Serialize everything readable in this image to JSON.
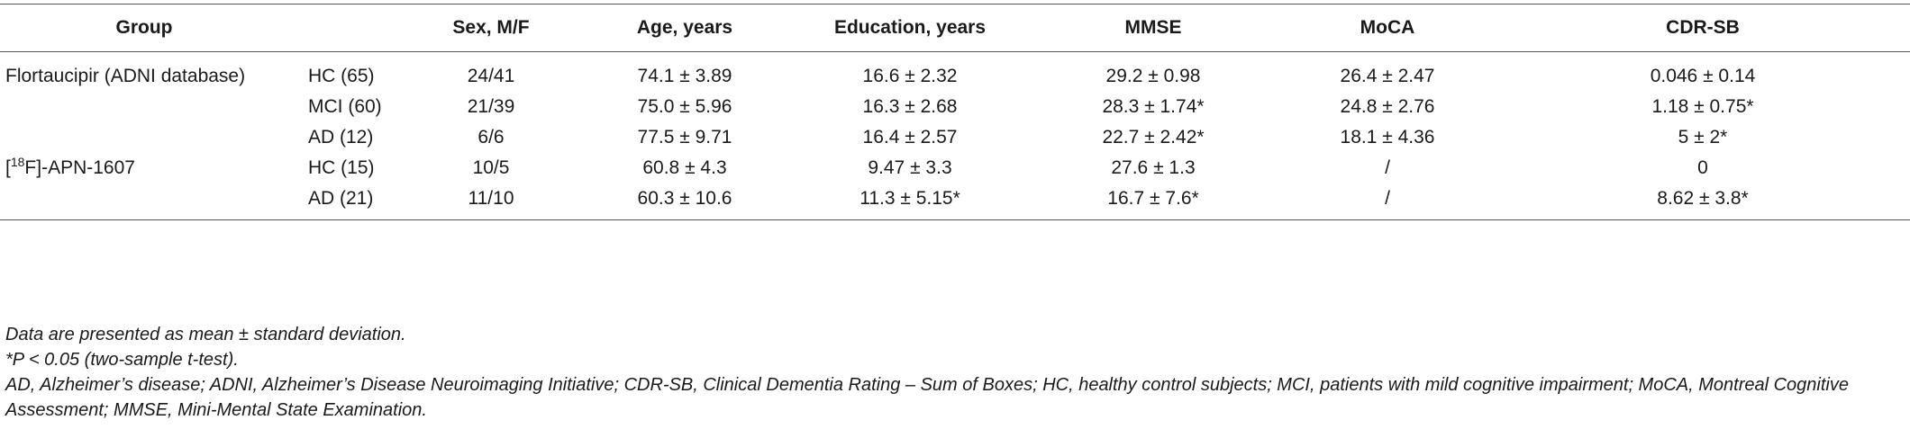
{
  "table": {
    "headers": [
      "Group",
      "",
      "Sex, M/F",
      "Age, years",
      "Education, years",
      "MMSE",
      "MoCA",
      "CDR-SB"
    ],
    "studies": [
      {
        "name": "Flortaucipir (ADNI database)",
        "rows": [
          {
            "group": "HC (65)",
            "sex": "24/41",
            "age": "74.1 ± 3.89",
            "education": "16.6 ± 2.32",
            "mmse": "29.2 ± 0.98",
            "moca": "26.4 ± 2.47",
            "cdrsb": "0.046 ± 0.14"
          },
          {
            "group": "MCI (60)",
            "sex": "21/39",
            "age": "75.0 ± 5.96",
            "education": "16.3 ± 2.68",
            "mmse": "28.3 ± 1.74*",
            "moca": "24.8 ± 2.76",
            "cdrsb": "1.18 ± 0.75*"
          },
          {
            "group": "AD (12)",
            "sex": "6/6",
            "age": "77.5 ± 9.71",
            "education": "16.4 ± 2.57",
            "mmse": "22.7 ± 2.42*",
            "moca": "18.1 ± 4.36",
            "cdrsb": "5 ± 2*"
          }
        ]
      },
      {
        "name_prefix": "[",
        "name_sup": "18",
        "name_suffix": "F]-APN-1607",
        "rows": [
          {
            "group": "HC (15)",
            "sex": "10/5",
            "age": "60.8 ± 4.3",
            "education": "9.47 ± 3.3",
            "mmse": "27.6 ± 1.3",
            "moca": "/",
            "cdrsb": "0"
          },
          {
            "group": "AD (21)",
            "sex": "11/10",
            "age": "60.3 ± 10.6",
            "education": "11.3 ± 5.15*",
            "mmse": "16.7 ± 7.6*",
            "moca": "/",
            "cdrsb": "8.62 ± 3.8*"
          }
        ]
      }
    ]
  },
  "footnotes": [
    "Data are presented as mean ± standard deviation.",
    "*P < 0.05 (two-sample t-test).",
    "AD, Alzheimer’s disease; ADNI, Alzheimer’s Disease Neuroimaging Initiative; CDR-SB, Clinical Dementia Rating – Sum of Boxes; HC, healthy control subjects; MCI, patients with mild cognitive impairment; MoCA, Montreal Cognitive Assessment; MMSE, Mini-Mental State Examination."
  ]
}
